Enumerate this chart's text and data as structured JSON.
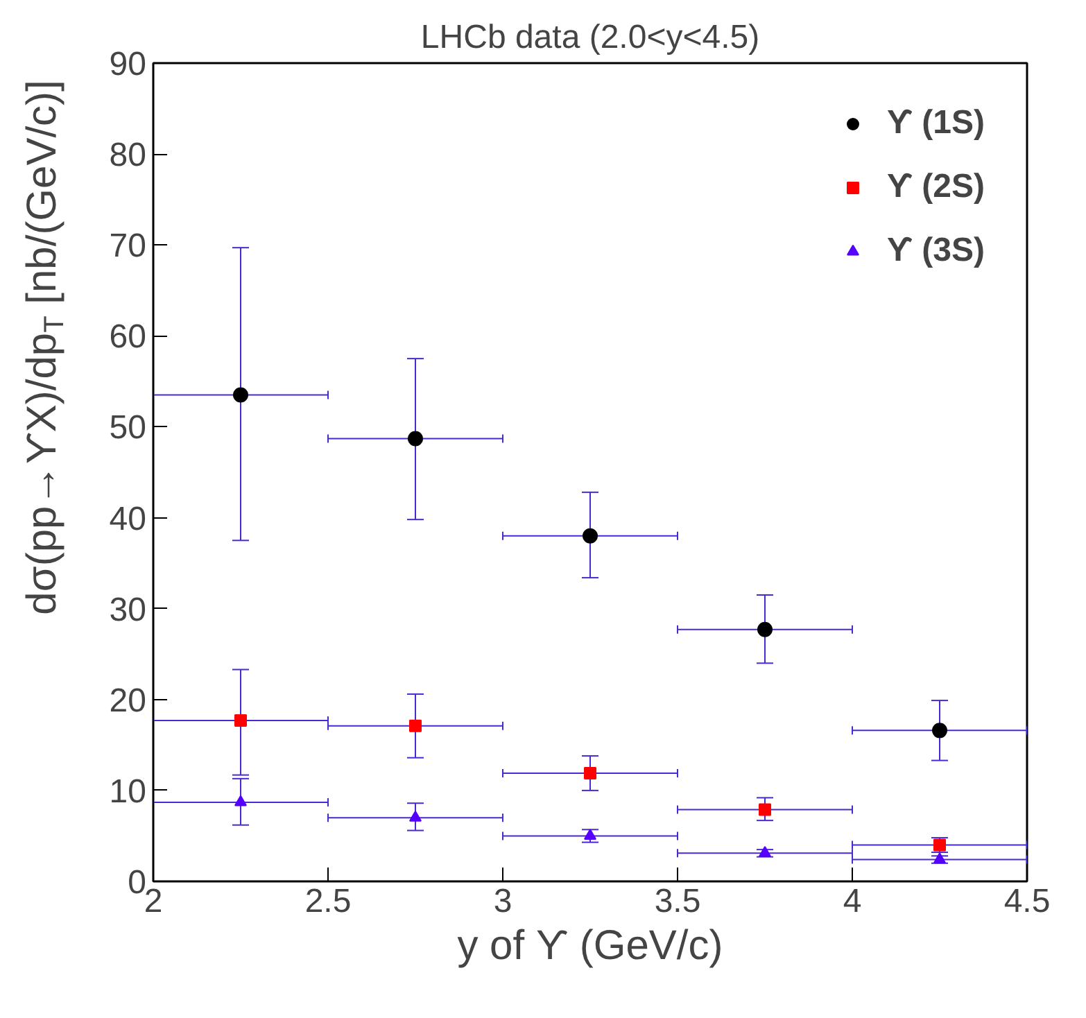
{
  "chart_data": {
    "type": "scatter",
    "title": "LHCb data (2.0<y<4.5)",
    "xlabel": "y of ϒ (GeV/c)",
    "ylabel": "dσ(pp→ϒX)/dp$_{T}$ [nb/(GeV/c)]",
    "x": [
      2.25,
      2.75,
      3.25,
      3.75,
      4.25
    ],
    "series": [
      {
        "name": "ϒ (1S)",
        "color": "#000000",
        "marker": "circle",
        "values": [
          53.5,
          48.7,
          38.0,
          27.7,
          16.6
        ],
        "errors": [
          [
            37.5,
            69.7
          ],
          [
            39.8,
            57.5
          ],
          [
            33.4,
            42.8
          ],
          [
            24.0,
            31.5
          ],
          [
            13.3,
            19.9
          ]
        ],
        "xerrors": [
          0.25,
          0.25,
          0.25,
          0.25,
          0.25
        ]
      },
      {
        "name": "ϒ (2S)",
        "color": "#ff0000",
        "marker": "square",
        "values": [
          17.7,
          17.1,
          11.9,
          7.9,
          4.0
        ],
        "errors": [
          [
            11.7,
            23.3
          ],
          [
            13.6,
            20.6
          ],
          [
            10.0,
            13.8
          ],
          [
            6.7,
            9.2
          ],
          [
            3.2,
            4.8
          ]
        ],
        "xerrors": [
          0.25,
          0.25,
          0.25,
          0.25,
          0.25
        ]
      },
      {
        "name": "ϒ (3S)",
        "color": "#5500ff",
        "marker": "triangle",
        "values": [
          8.7,
          7.0,
          5.0,
          3.1,
          2.4
        ],
        "errors": [
          [
            6.2,
            11.3
          ],
          [
            5.6,
            8.6
          ],
          [
            4.3,
            5.7
          ],
          [
            2.7,
            3.5
          ],
          [
            2.0,
            2.8
          ]
        ],
        "xerrors": [
          0.25,
          0.25,
          0.25,
          0.25,
          0.25
        ]
      }
    ],
    "xlim": [
      2,
      4.5
    ],
    "ylim": [
      0,
      90
    ],
    "xticks": [
      2,
      2.5,
      3,
      3.5,
      4,
      4.5
    ],
    "yticks": [
      0,
      10,
      20,
      30,
      40,
      50,
      60,
      70,
      80,
      90
    ],
    "grid": false,
    "legend": "top right"
  }
}
